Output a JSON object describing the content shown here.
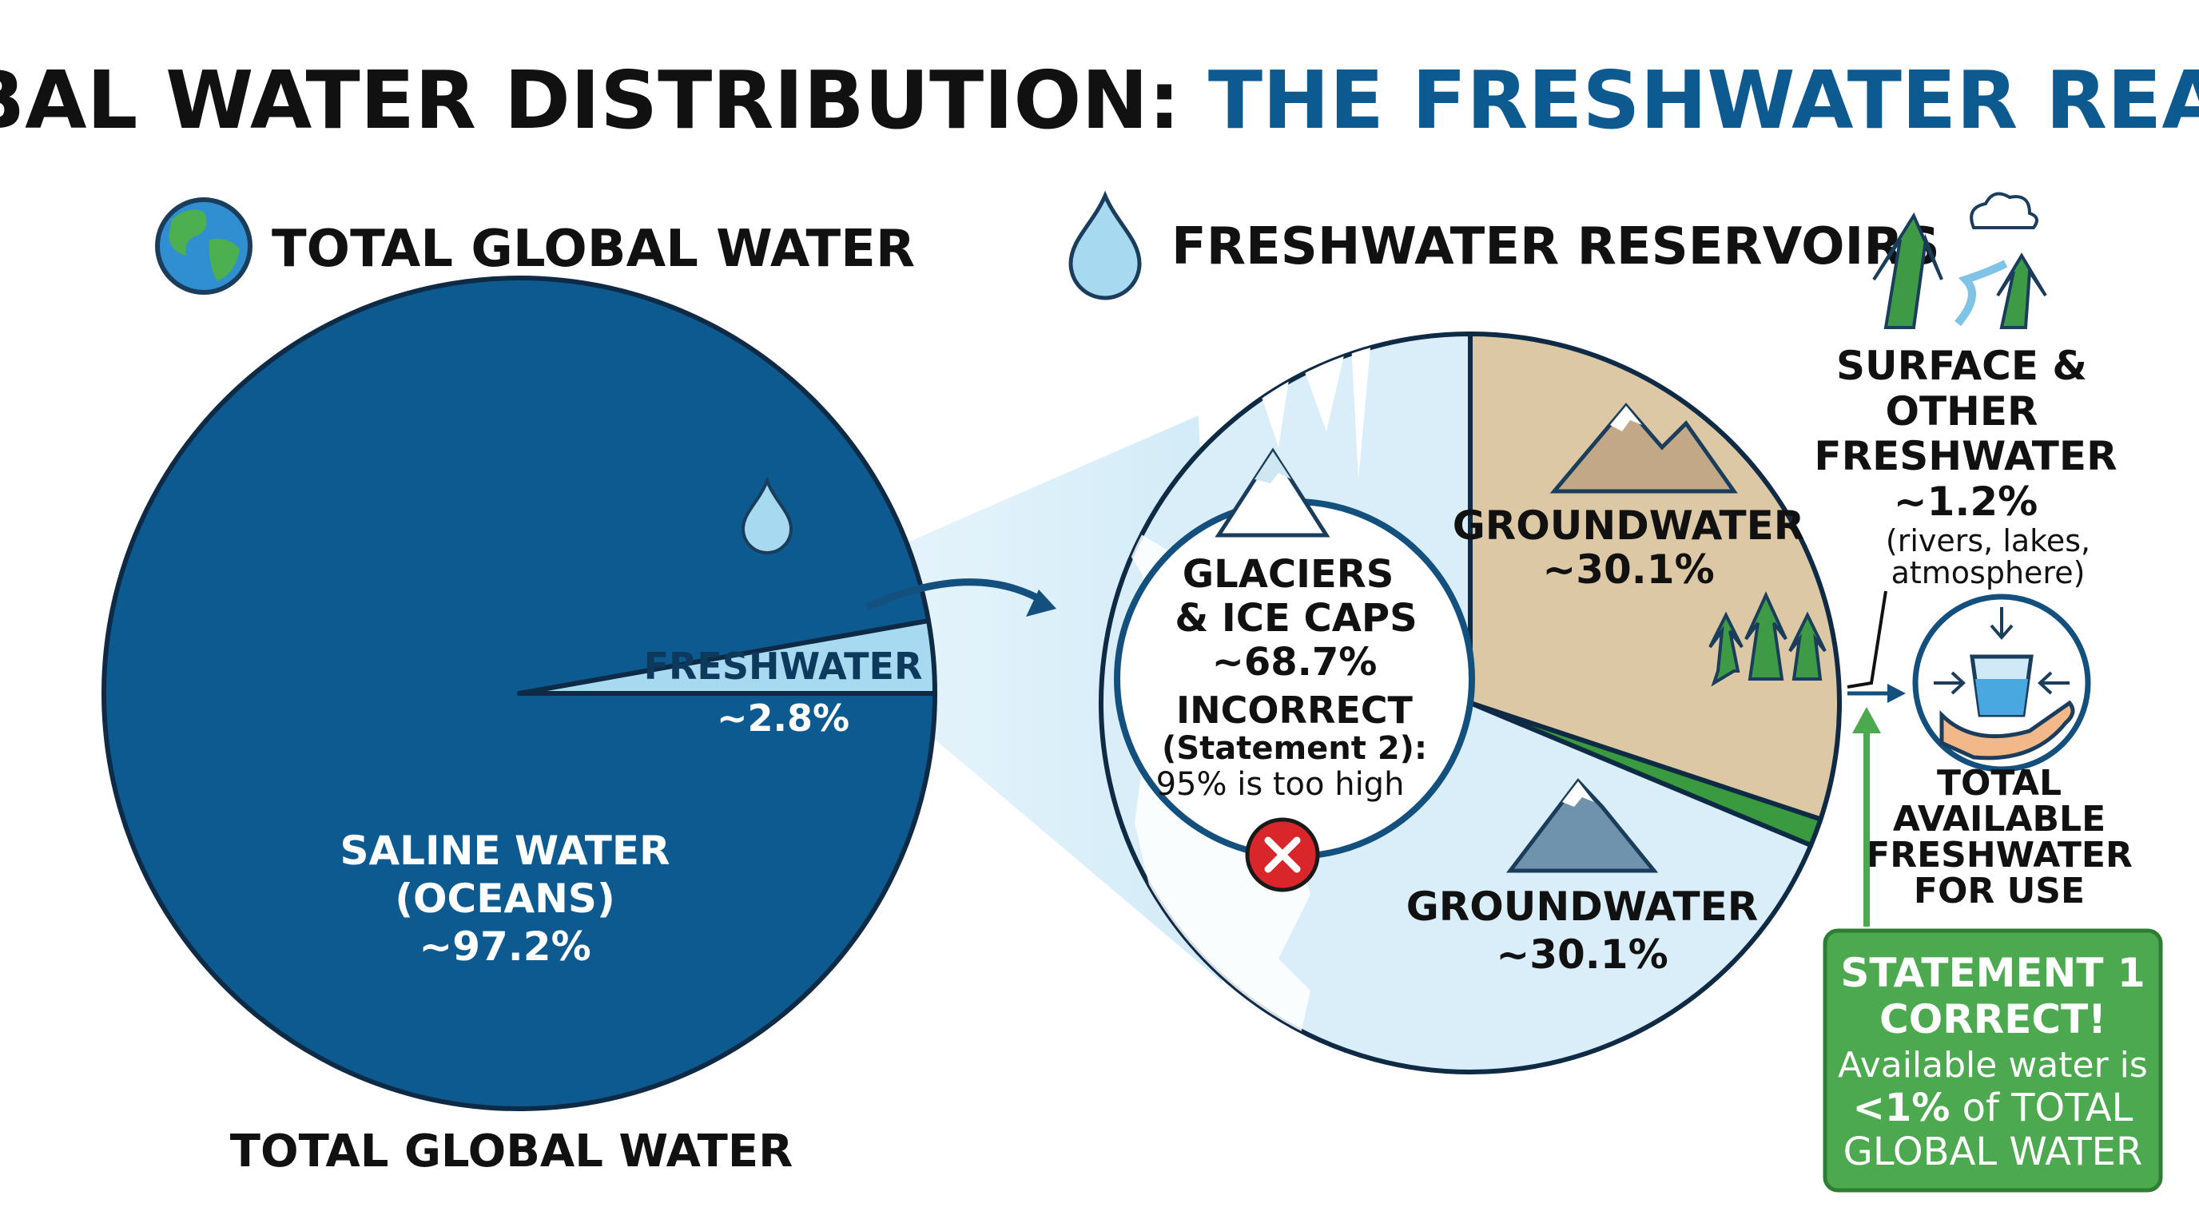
{
  "title": {
    "part1": "GLOBAL WATER DISTRIBUTION:",
    "part2": "THE FRESHWATER REALITY"
  },
  "left_panel": {
    "heading": "TOTAL GLOBAL WATER",
    "bottom_caption": "TOTAL GLOBAL WATER",
    "icon": "globe-icon"
  },
  "right_panel": {
    "heading": "FRESHWATER RESERVOIRS",
    "icon": "water-drop-icon"
  },
  "incorrect_note": {
    "line1": "INCORRECT",
    "line2": "(Statement 2):",
    "line3": "95% is too high"
  },
  "surface_note": {
    "line1": "(rivers, lakes,",
    "line2": "atmosphere)"
  },
  "available": {
    "line1": "TOTAL",
    "line2": "AVAILABLE",
    "line3": "FRESHWATER",
    "line4": "FOR USE"
  },
  "statement1": {
    "line1": "STATEMENT 1",
    "line2": "CORRECT!",
    "line3": "Available water is",
    "line4a": "<1%",
    "line4b": " of TOTAL",
    "line5": "GLOBAL WATER"
  },
  "colors": {
    "saline": "#0d5a91",
    "freshwater": "#a7d9f1",
    "glacier": "#d9eef8",
    "groundwater": "#dcc8a4",
    "surface": "#3a9a3f",
    "title_accent": "#0d5a91",
    "correct": "#4ca94f",
    "incorrect": "#d9262a"
  },
  "chart_data": [
    {
      "type": "pie",
      "title": "TOTAL GLOBAL WATER",
      "slices": [
        {
          "label_line1": "SALINE WATER",
          "label_line2": "(OCEANS)",
          "value_label": "~97.2%",
          "value": 97.2
        },
        {
          "label_line1": "FRESHWATER",
          "label_line2": "",
          "value_label": "~2.8%",
          "value": 2.8
        }
      ]
    },
    {
      "type": "pie",
      "title": "FRESHWATER RESERVOIRS",
      "slices": [
        {
          "label_line1": "GLACIERS",
          "label_line2": "& ICE CAPS",
          "value_label": "~68.7%",
          "value": 68.7
        },
        {
          "label_line1": "GROUNDWATER",
          "label_line2": "",
          "value_label": "~30.1%",
          "value": 30.1
        },
        {
          "label_line1": "SURFACE &",
          "label_line2": "OTHER",
          "label_line3": "FRESHWATER",
          "value_label": "~1.2%",
          "value": 1.2
        }
      ],
      "extra_labels": {
        "groundwater_lower": "GROUNDWATER",
        "groundwater_lower_value": "~30.1%"
      }
    }
  ]
}
